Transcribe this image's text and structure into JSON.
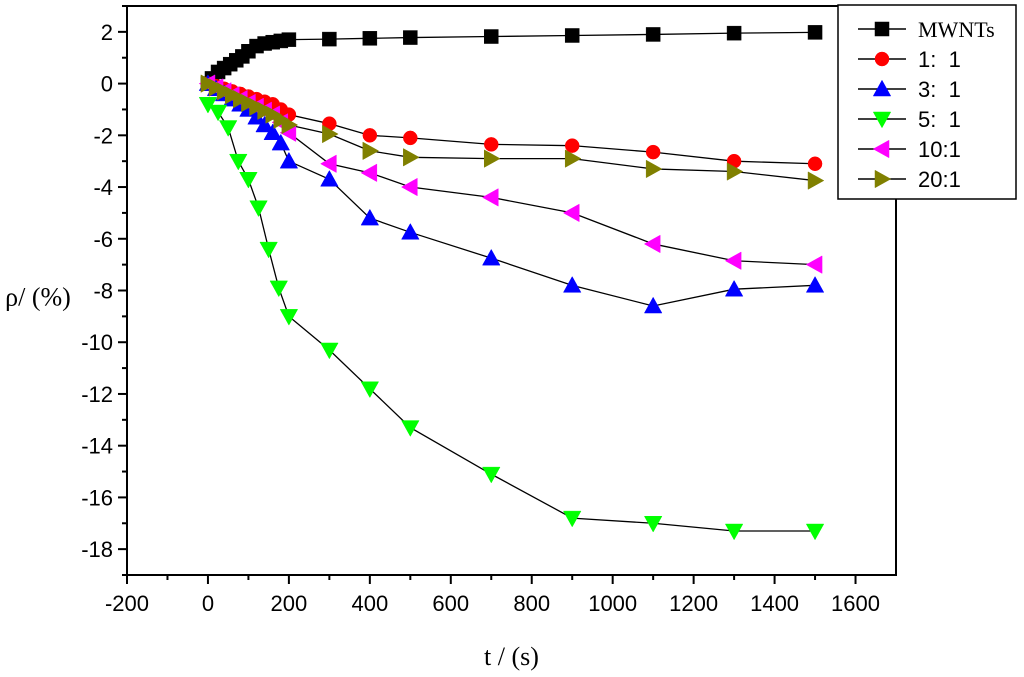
{
  "chart_data": {
    "type": "scatter",
    "title": "",
    "xlabel": "t / (s)",
    "ylabel": "ρ/ (%)",
    "xlim": [
      -200,
      1700
    ],
    "ylim": [
      -19,
      3
    ],
    "xticks": [
      -200,
      0,
      200,
      400,
      600,
      800,
      1000,
      1200,
      1400,
      1600
    ],
    "yticks": [
      2,
      0,
      -2,
      -4,
      -6,
      -8,
      -10,
      -12,
      -14,
      -16,
      -18
    ],
    "grid": false,
    "legend_position": "top-right",
    "series": [
      {
        "name": "MWNTs",
        "marker": "square",
        "color": "#000000",
        "x": [
          0,
          10,
          25,
          40,
          55,
          70,
          85,
          100,
          120,
          140,
          160,
          180,
          200,
          300,
          400,
          500,
          700,
          900,
          1100,
          1300,
          1500
        ],
        "y": [
          0,
          0.2,
          0.45,
          0.6,
          0.75,
          0.9,
          1.05,
          1.25,
          1.45,
          1.55,
          1.6,
          1.65,
          1.7,
          1.72,
          1.75,
          1.78,
          1.82,
          1.86,
          1.9,
          1.95,
          1.98
        ]
      },
      {
        "name": "1:  1",
        "marker": "circle",
        "color": "#ff0000",
        "x": [
          0,
          20,
          40,
          60,
          80,
          100,
          120,
          140,
          160,
          180,
          200,
          300,
          400,
          500,
          700,
          900,
          1100,
          1300,
          1500
        ],
        "y": [
          0,
          -0.1,
          -0.2,
          -0.3,
          -0.4,
          -0.5,
          -0.6,
          -0.7,
          -0.8,
          -1.0,
          -1.2,
          -1.55,
          -2.0,
          -2.1,
          -2.35,
          -2.4,
          -2.65,
          -3.0,
          -3.1
        ]
      },
      {
        "name": "3:  1",
        "marker": "triangle-up",
        "color": "#0000ff",
        "x": [
          0,
          20,
          40,
          60,
          80,
          100,
          120,
          140,
          160,
          180,
          200,
          300,
          400,
          500,
          700,
          900,
          1100,
          1300,
          1500
        ],
        "y": [
          0,
          -0.2,
          -0.4,
          -0.6,
          -0.8,
          -1.0,
          -1.3,
          -1.6,
          -1.9,
          -2.3,
          -3.0,
          -3.7,
          -5.2,
          -5.75,
          -6.75,
          -7.8,
          -8.6,
          -7.95,
          -7.8
        ]
      },
      {
        "name": "5:  1",
        "marker": "triangle-down",
        "color": "#00ff00",
        "x": [
          0,
          25,
          50,
          75,
          100,
          125,
          150,
          175,
          200,
          300,
          400,
          500,
          700,
          900,
          1100,
          1300,
          1500
        ],
        "y": [
          -0.8,
          -1.1,
          -1.7,
          -3.0,
          -3.7,
          -4.8,
          -6.4,
          -7.9,
          -9.0,
          -10.3,
          -11.8,
          -13.3,
          -15.1,
          -16.8,
          -17.0,
          -17.3,
          -17.3
        ]
      },
      {
        "name": "10:1",
        "marker": "triangle-left",
        "color": "#ff00ff",
        "x": [
          0,
          20,
          40,
          60,
          80,
          100,
          120,
          140,
          160,
          180,
          200,
          300,
          400,
          500,
          700,
          900,
          1100,
          1300,
          1500
        ],
        "y": [
          0,
          -0.15,
          -0.3,
          -0.45,
          -0.6,
          -0.75,
          -0.9,
          -1.05,
          -1.2,
          -1.5,
          -1.9,
          -3.1,
          -3.45,
          -4.0,
          -4.4,
          -5.0,
          -6.2,
          -6.85,
          -7.0
        ]
      },
      {
        "name": "20:1",
        "marker": "triangle-right",
        "color": "#808000",
        "x": [
          0,
          20,
          40,
          60,
          80,
          100,
          120,
          140,
          160,
          180,
          200,
          300,
          400,
          500,
          700,
          900,
          1100,
          1300,
          1500
        ],
        "y": [
          0,
          -0.15,
          -0.3,
          -0.45,
          -0.6,
          -0.75,
          -0.9,
          -1.05,
          -1.2,
          -1.4,
          -1.6,
          -1.95,
          -2.6,
          -2.85,
          -2.9,
          -2.9,
          -3.3,
          -3.4,
          -3.75
        ]
      }
    ]
  }
}
